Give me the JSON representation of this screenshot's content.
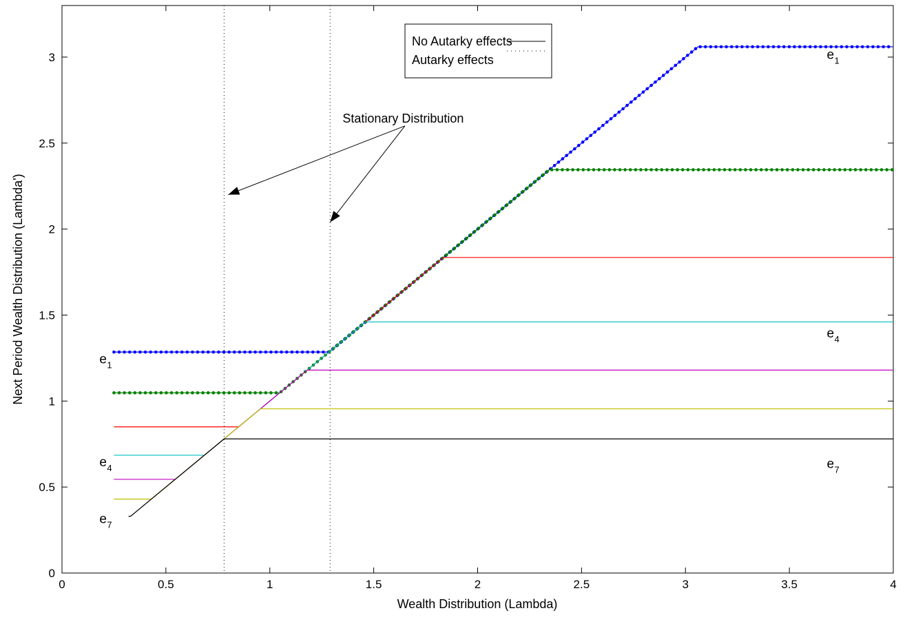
{
  "chart_data": {
    "type": "line",
    "xlabel": "Wealth Distribution (Lambda)",
    "ylabel": "Next Period Wealth Distribution (Lambda')",
    "xlim": [
      0,
      4
    ],
    "ylim": [
      0,
      3.3
    ],
    "xticks": [
      0,
      0.5,
      1,
      1.5,
      2,
      2.5,
      3,
      3.5,
      4
    ],
    "xtick_labels": [
      "0",
      "0.5",
      "1",
      "1.5",
      "2",
      "2.5",
      "3",
      "3.5",
      "4"
    ],
    "yticks": [
      0,
      0.5,
      1,
      1.5,
      2,
      2.5,
      3
    ],
    "ytick_labels": [
      "0",
      "0.5",
      "1",
      "1.5",
      "2",
      "2.5",
      "3"
    ],
    "grid": false,
    "legend": {
      "position": "top-center",
      "entries": [
        {
          "label": "No Autarky effects",
          "style": "solid"
        },
        {
          "label": "Autarky effects",
          "style": "dotted"
        }
      ]
    },
    "series": [
      {
        "color": "#0000ff",
        "low": 1.285,
        "high": 3.06,
        "style": "dotted-marker",
        "x": [
          0.25,
          1.285,
          3.06,
          4.0
        ],
        "y": [
          1.285,
          1.285,
          3.06,
          3.06
        ]
      },
      {
        "color": "#008000",
        "low": 1.048,
        "high": 2.345,
        "style": "dotted-marker",
        "x": [
          0.25,
          1.048,
          2.345,
          4.0
        ],
        "y": [
          1.048,
          1.048,
          2.345,
          2.345
        ]
      },
      {
        "color": "#ff0000",
        "low": 0.85,
        "high": 1.835,
        "style": "solid",
        "x": [
          0.25,
          0.85,
          1.835,
          4.0
        ],
        "y": [
          0.85,
          0.85,
          1.835,
          1.835
        ]
      },
      {
        "color": "#00bfbf",
        "low": 0.685,
        "high": 1.46,
        "style": "solid",
        "x": [
          0.25,
          0.685,
          1.46,
          4.0
        ],
        "y": [
          0.685,
          0.685,
          1.46,
          1.46
        ]
      },
      {
        "color": "#bf00bf",
        "low": 0.545,
        "high": 1.18,
        "style": "solid",
        "x": [
          0.25,
          0.545,
          1.18,
          4.0
        ],
        "y": [
          0.545,
          0.545,
          1.18,
          1.18
        ]
      },
      {
        "color": "#bfbf00",
        "low": 0.43,
        "high": 0.955,
        "style": "solid",
        "x": [
          0.25,
          0.43,
          0.955,
          4.0
        ],
        "y": [
          0.43,
          0.43,
          0.955,
          0.955
        ]
      },
      {
        "color": "#000000",
        "low": 0.33,
        "high": 0.78,
        "style": "solid",
        "x": [
          0.32,
          0.33,
          0.78,
          4.0
        ],
        "y": [
          0.33,
          0.33,
          0.78,
          0.78
        ]
      }
    ],
    "stationary_lines": [
      0.78,
      1.29
    ],
    "annotations": [
      {
        "text": "Stationary Distribution",
        "anchor": [
          1.65,
          2.6
        ],
        "arrows_to": [
          [
            0.8,
            2.2
          ],
          [
            1.29,
            2.04
          ]
        ]
      }
    ],
    "curve_labels": [
      {
        "base": "e",
        "sub": "1",
        "x": 0.18,
        "y": 1.22
      },
      {
        "base": "e",
        "sub": "4",
        "x": 0.18,
        "y": 0.62
      },
      {
        "base": "e",
        "sub": "7",
        "x": 0.18,
        "y": 0.29
      },
      {
        "base": "e",
        "sub": "1",
        "x": 3.68,
        "y": 2.99
      },
      {
        "base": "e",
        "sub": "4",
        "x": 3.68,
        "y": 1.37
      },
      {
        "base": "e",
        "sub": "7",
        "x": 3.68,
        "y": 0.61
      }
    ]
  }
}
